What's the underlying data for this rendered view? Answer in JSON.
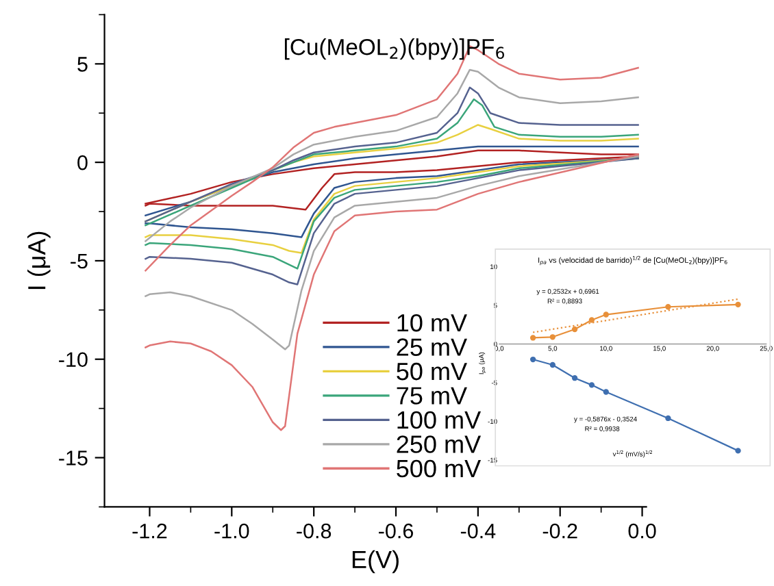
{
  "chart_data": [
    {
      "type": "line",
      "title": "[Cu(MeOL$_{2}$)(bpy)]PF$_{6}$",
      "xlabel": "E(V)",
      "ylabel": "I (μA)",
      "xlim": [
        -1.31,
        0.01
      ],
      "ylim": [
        -17.5,
        7.5
      ],
      "xticks": [
        {
          "value": -1.2,
          "label": "-1.2"
        },
        {
          "value": -1.1,
          "label": null
        },
        {
          "value": -1.0,
          "label": "-1.0"
        },
        {
          "value": -0.9,
          "label": null
        },
        {
          "value": -0.8,
          "label": "-0.8"
        },
        {
          "value": -0.7,
          "label": null
        },
        {
          "value": -0.6,
          "label": "-0.6"
        },
        {
          "value": -0.5,
          "label": null
        },
        {
          "value": -0.4,
          "label": "-0.4"
        },
        {
          "value": -0.3,
          "label": null
        },
        {
          "value": -0.2,
          "label": "-0.2"
        },
        {
          "value": -0.1,
          "label": null
        },
        {
          "value": 0.0,
          "label": "0.0"
        }
      ],
      "yticks": [
        {
          "value": -17.5,
          "label": null
        },
        {
          "value": -15,
          "label": "-15"
        },
        {
          "value": -12.5,
          "label": null
        },
        {
          "value": -10,
          "label": "-10"
        },
        {
          "value": -7.5,
          "label": null
        },
        {
          "value": -5,
          "label": "-5"
        },
        {
          "value": -2.5,
          "label": null
        },
        0,
        {
          "value": 2.5,
          "label": null
        },
        5,
        {
          "value": 7.5,
          "label": null
        }
      ],
      "legend": "bottom",
      "grid": false,
      "series": [
        {
          "name": "10 mV",
          "color": "#b22222",
          "x": [
            -1.21,
            -1.2,
            -1.1,
            -1.0,
            -0.9,
            -0.82,
            -0.78,
            -0.75,
            -0.7,
            -0.6,
            -0.5,
            -0.4,
            -0.3,
            -0.01
          ],
          "values": [
            -2.2,
            -2.1,
            -2.2,
            -2.2,
            -2.2,
            -2.4,
            -1.3,
            -0.6,
            -0.5,
            -0.5,
            -0.4,
            -0.2,
            0.0,
            0.3
          ]
        },
        {
          "color": "#b22222",
          "x": [
            -1.21,
            -1.1,
            -1.0,
            -0.9,
            -0.8,
            -0.7,
            -0.6,
            -0.5,
            -0.4,
            -0.3,
            -0.2,
            -0.1,
            -0.01
          ],
          "values": [
            -2.1,
            -1.6,
            -1.0,
            -0.6,
            -0.3,
            -0.1,
            0.1,
            0.3,
            0.6,
            0.6,
            0.5,
            0.4,
            0.4
          ]
        },
        {
          "name": "25 mV",
          "color": "#2f5590",
          "x": [
            -1.21,
            -1.2,
            -1.1,
            -1.0,
            -0.9,
            -0.83,
            -0.8,
            -0.75,
            -0.7,
            -0.6,
            -0.5,
            -0.4,
            -0.3,
            -0.01
          ],
          "values": [
            -3.1,
            -3.1,
            -3.3,
            -3.4,
            -3.6,
            -3.8,
            -2.6,
            -1.3,
            -1.0,
            -0.8,
            -0.7,
            -0.4,
            -0.1,
            0.2
          ]
        },
        {
          "color": "#2f5590",
          "x": [
            -1.21,
            -1.1,
            -1.0,
            -0.9,
            -0.8,
            -0.7,
            -0.6,
            -0.5,
            -0.4,
            -0.3,
            -0.2,
            -0.1,
            -0.01
          ],
          "values": [
            -2.7,
            -2.0,
            -1.2,
            -0.5,
            -0.1,
            0.2,
            0.4,
            0.6,
            0.8,
            0.8,
            0.8,
            0.8,
            0.8
          ]
        },
        {
          "name": "50 mV",
          "color": "#e8d040",
          "x": [
            -1.21,
            -1.2,
            -1.1,
            -1.0,
            -0.9,
            -0.86,
            -0.83,
            -0.8,
            -0.75,
            -0.7,
            -0.6,
            -0.5,
            -0.4,
            -0.3,
            -0.01
          ],
          "values": [
            -3.8,
            -3.7,
            -3.7,
            -3.9,
            -4.2,
            -4.5,
            -4.6,
            -2.9,
            -1.6,
            -1.2,
            -1.0,
            -0.8,
            -0.5,
            -0.2,
            0.2
          ]
        },
        {
          "color": "#e8d040",
          "x": [
            -1.21,
            -1.1,
            -1.0,
            -0.9,
            -0.85,
            -0.8,
            -0.7,
            -0.6,
            -0.5,
            -0.45,
            -0.4,
            -0.37,
            -0.3,
            -0.2,
            -0.1,
            -0.01
          ],
          "values": [
            -3.0,
            -2.0,
            -1.2,
            -0.4,
            0.0,
            0.3,
            0.5,
            0.7,
            1.0,
            1.4,
            1.9,
            1.7,
            1.2,
            1.1,
            1.1,
            1.2
          ]
        },
        {
          "name": "75 mV",
          "color": "#3aa57a",
          "x": [
            -1.21,
            -1.2,
            -1.1,
            -1.0,
            -0.9,
            -0.86,
            -0.84,
            -0.8,
            -0.75,
            -0.7,
            -0.6,
            -0.5,
            -0.4,
            -0.3,
            -0.01
          ],
          "values": [
            -4.2,
            -4.1,
            -4.2,
            -4.4,
            -4.8,
            -5.2,
            -5.4,
            -3.0,
            -1.8,
            -1.4,
            -1.2,
            -1.0,
            -0.7,
            -0.3,
            0.2
          ]
        },
        {
          "color": "#3aa57a",
          "x": [
            -1.21,
            -1.1,
            -1.0,
            -0.9,
            -0.85,
            -0.8,
            -0.7,
            -0.6,
            -0.5,
            -0.45,
            -0.41,
            -0.39,
            -0.36,
            -0.3,
            -0.2,
            -0.1,
            -0.01
          ],
          "values": [
            -3.2,
            -2.2,
            -1.3,
            -0.4,
            0.0,
            0.4,
            0.6,
            0.8,
            1.2,
            2.0,
            3.2,
            2.9,
            1.8,
            1.4,
            1.3,
            1.3,
            1.4
          ]
        },
        {
          "name": "100 mV",
          "color": "#55628f",
          "x": [
            -1.21,
            -1.2,
            -1.1,
            -1.0,
            -0.9,
            -0.86,
            -0.84,
            -0.8,
            -0.75,
            -0.7,
            -0.6,
            -0.5,
            -0.4,
            -0.3,
            -0.01
          ],
          "values": [
            -4.9,
            -4.8,
            -4.9,
            -5.1,
            -5.7,
            -6.1,
            -6.2,
            -3.6,
            -2.1,
            -1.6,
            -1.4,
            -1.2,
            -0.8,
            -0.4,
            0.2
          ]
        },
        {
          "color": "#55628f",
          "x": [
            -1.21,
            -1.1,
            -1.0,
            -0.9,
            -0.85,
            -0.8,
            -0.7,
            -0.6,
            -0.5,
            -0.45,
            -0.42,
            -0.4,
            -0.37,
            -0.3,
            -0.2,
            -0.1,
            -0.01
          ],
          "values": [
            -3.0,
            -2.0,
            -1.1,
            -0.4,
            0.1,
            0.5,
            0.8,
            1.0,
            1.5,
            2.5,
            3.8,
            3.5,
            2.5,
            2.0,
            1.9,
            1.9,
            1.9
          ]
        },
        {
          "name": "250 mV",
          "color": "#a8a8a8",
          "x": [
            -1.21,
            -1.2,
            -1.15,
            -1.1,
            -1.0,
            -0.95,
            -0.9,
            -0.87,
            -0.86,
            -0.83,
            -0.8,
            -0.75,
            -0.7,
            -0.6,
            -0.5,
            -0.4,
            -0.3,
            -0.01
          ],
          "values": [
            -6.8,
            -6.7,
            -6.6,
            -6.8,
            -7.5,
            -8.2,
            -9.0,
            -9.5,
            -9.3,
            -6.5,
            -4.5,
            -2.8,
            -2.2,
            -2.0,
            -1.8,
            -1.2,
            -0.7,
            0.3
          ]
        },
        {
          "color": "#a8a8a8",
          "x": [
            -1.21,
            -1.15,
            -1.1,
            -1.0,
            -0.9,
            -0.85,
            -0.8,
            -0.7,
            -0.6,
            -0.5,
            -0.45,
            -0.42,
            -0.4,
            -0.35,
            -0.3,
            -0.2,
            -0.1,
            -0.01
          ],
          "values": [
            -4.0,
            -3.0,
            -2.3,
            -1.2,
            -0.3,
            0.4,
            0.9,
            1.3,
            1.6,
            2.3,
            3.5,
            4.7,
            4.6,
            3.8,
            3.3,
            3.0,
            3.1,
            3.3
          ]
        },
        {
          "name": "500 mV",
          "color": "#e07575",
          "x": [
            -1.21,
            -1.2,
            -1.15,
            -1.1,
            -1.05,
            -1.0,
            -0.95,
            -0.9,
            -0.88,
            -0.87,
            -0.84,
            -0.8,
            -0.75,
            -0.7,
            -0.6,
            -0.5,
            -0.45,
            -0.4,
            -0.3,
            -0.01
          ],
          "values": [
            -9.4,
            -9.3,
            -9.1,
            -9.2,
            -9.6,
            -10.3,
            -11.4,
            -13.2,
            -13.6,
            -13.4,
            -8.7,
            -5.7,
            -3.5,
            -2.7,
            -2.5,
            -2.4,
            -2.0,
            -1.6,
            -1.0,
            0.4
          ]
        },
        {
          "color": "#e07575",
          "x": [
            -1.21,
            -1.15,
            -1.1,
            -1.0,
            -0.95,
            -0.9,
            -0.85,
            -0.8,
            -0.75,
            -0.7,
            -0.6,
            -0.5,
            -0.45,
            -0.42,
            -0.4,
            -0.35,
            -0.3,
            -0.2,
            -0.1,
            -0.01
          ],
          "values": [
            -5.5,
            -4.2,
            -3.2,
            -1.7,
            -1.0,
            -0.25,
            0.75,
            1.5,
            1.8,
            2.0,
            2.4,
            3.2,
            4.5,
            5.9,
            5.7,
            5.0,
            4.5,
            4.2,
            4.3,
            4.8
          ]
        }
      ]
    },
    {
      "type": "line",
      "title": "I$_{pa}$ vs (velocidad de barrido)$^{1/2}$ de [Cu(MeOL$_{2}$)(bpy)]PF$_{6}$",
      "xlabel": "v$^{1/2}$ (mV/s)$^{1/2}$",
      "ylabel": "I$_{pa}$ (μA)",
      "xlim": [
        0,
        25
      ],
      "ylim": [
        -15,
        10
      ],
      "xticks": [
        {
          "value": 0,
          "label": "0,0"
        },
        {
          "value": 5,
          "label": "5,0"
        },
        {
          "value": 10,
          "label": "10,0"
        },
        {
          "value": 15,
          "label": "15,0"
        },
        {
          "value": 20,
          "label": "20,0"
        },
        {
          "value": 25,
          "label": "25,0"
        }
      ],
      "yticks": [
        -15,
        -10,
        -5,
        0,
        5,
        10
      ],
      "marker": "circle",
      "grid": false,
      "annotations": [
        "y = 0,2532x + 0,6961",
        "R² = 0,8893",
        "y = -0,5876x - 0,3524",
        "R² = 0,9938"
      ],
      "series": [
        {
          "color": "#e8903a",
          "x": [
            3.16,
            5.0,
            7.07,
            8.66,
            10.0,
            15.81,
            22.36
          ],
          "values": [
            0.8,
            0.9,
            1.9,
            3.1,
            3.8,
            4.8,
            5.1
          ]
        },
        {
          "color": "#e8903a",
          "type": "line",
          "marker": "none",
          "line_style": "dotted",
          "x": [
            3.16,
            22.36
          ],
          "values": [
            1.5,
            5.8
          ]
        },
        {
          "color": "#3f6fb0",
          "x": [
            3.16,
            5.0,
            7.07,
            8.66,
            10.0,
            15.81,
            22.36
          ],
          "values": [
            -2.0,
            -2.7,
            -4.4,
            -5.3,
            -6.2,
            -9.6,
            -13.8
          ]
        }
      ]
    }
  ]
}
